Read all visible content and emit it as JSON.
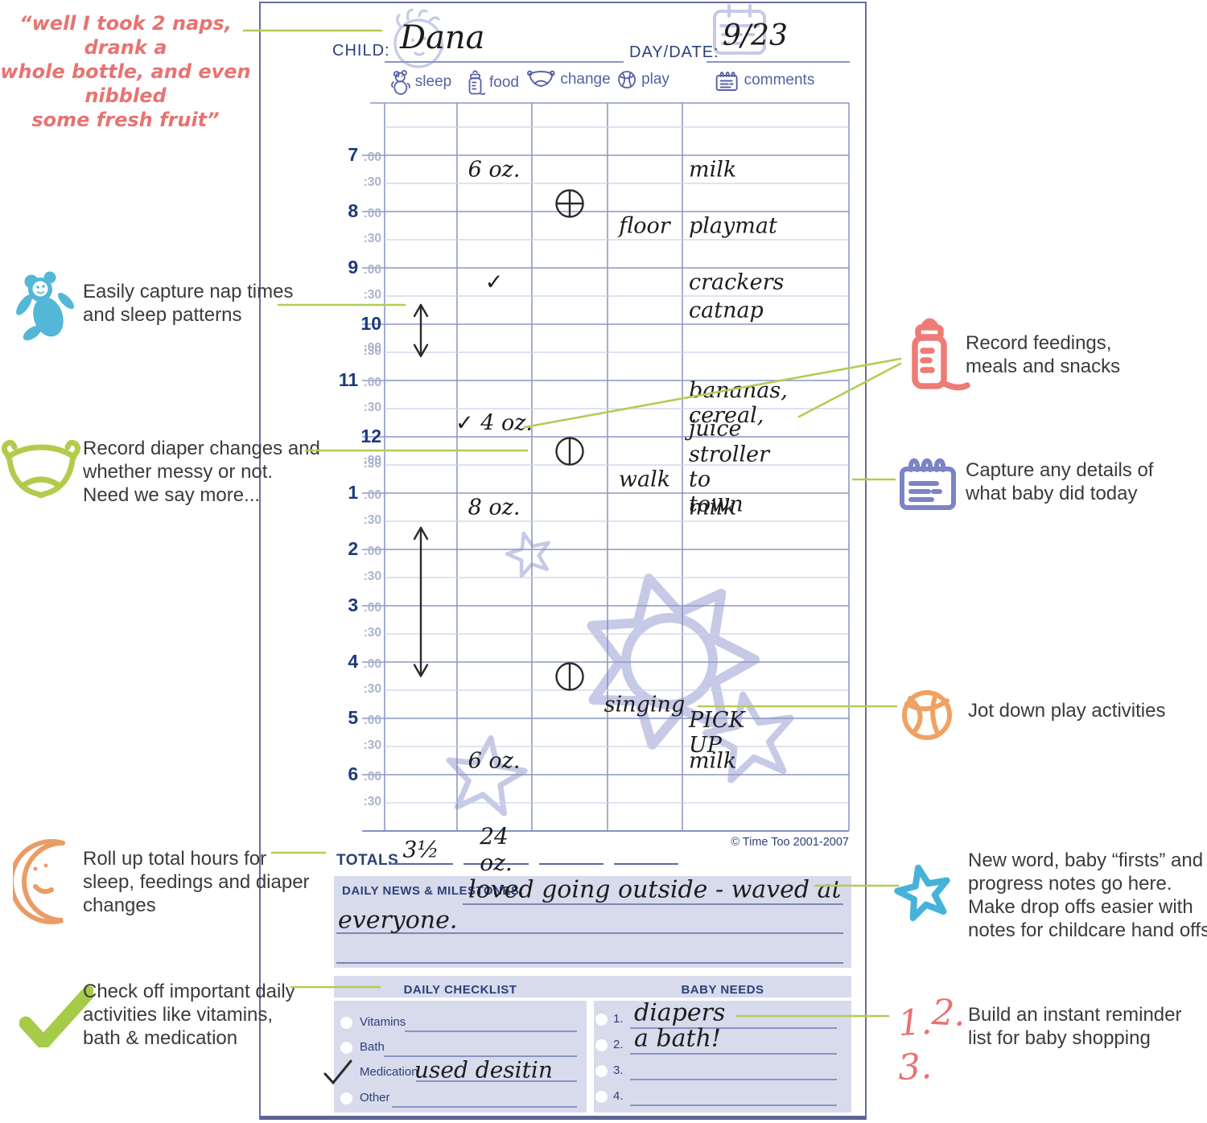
{
  "colors": {
    "accent_green": "#b4cb56",
    "navy": "#2b4178",
    "lavender_box": "#d8dbec",
    "doodle_lavender": "#c6cae6",
    "coral": "#e87372",
    "handwriting": "#1c1c1c"
  },
  "quote": {
    "lines": [
      "“well I took 2 naps, drank a",
      "whole bottle, and even nibbled",
      "some fresh fruit”"
    ]
  },
  "form": {
    "child_label": "CHILD:",
    "child_value": "Dana",
    "date_label": "DAY/DATE:",
    "date_value": "9/23",
    "columns": [
      {
        "label": "sleep",
        "icon": "bear-mini-icon"
      },
      {
        "label": "food",
        "icon": "bottle-mini-icon"
      },
      {
        "label": "change",
        "icon": "diaper-mini-icon"
      },
      {
        "label": "play",
        "icon": "ball-mini-icon"
      },
      {
        "label": "comments",
        "icon": "notepad-mini-icon"
      }
    ],
    "hours": [
      "7",
      "8",
      "9",
      "10",
      "11",
      "12",
      "1",
      "2",
      "3",
      "4",
      "5",
      "6"
    ],
    "hour_suffix": ":00",
    "half_suffix": ":30",
    "entries": [
      {
        "row": 2,
        "col": "food",
        "text": "6 oz."
      },
      {
        "row": 2,
        "col": "comments",
        "text": "milk"
      },
      {
        "row": 4,
        "col": "play",
        "text": "floor"
      },
      {
        "row": 4,
        "col": "comments",
        "text": "playmat"
      },
      {
        "row": 6,
        "col": "food",
        "text": "✓"
      },
      {
        "row": 6,
        "col": "comments",
        "text": "crackers"
      },
      {
        "row": 7,
        "col": "comments",
        "text": "catnap"
      },
      {
        "row": 10.3,
        "col": "comments",
        "text": "bananas, cereal,"
      },
      {
        "row": 11.2,
        "col": "comments",
        "text": "juice"
      },
      {
        "row": 11,
        "col": "food",
        "text": "✓ 4 oz."
      },
      {
        "row": 13,
        "col": "play",
        "text": "walk"
      },
      {
        "row": 13,
        "col": "comments",
        "text": "stroller to town"
      },
      {
        "row": 14,
        "col": "food",
        "text": "8 oz."
      },
      {
        "row": 14,
        "col": "comments",
        "text": "milk"
      },
      {
        "row": 21,
        "col": "play",
        "text": "singing"
      },
      {
        "row": 22,
        "col": "comments",
        "text": "PICK UP"
      },
      {
        "row": 23,
        "col": "food",
        "text": "6 oz."
      },
      {
        "row": 23,
        "col": "comments",
        "text": "milk"
      }
    ],
    "change_marks": [
      {
        "row": 3.2,
        "style": "cross"
      },
      {
        "row": 12,
        "style": "vertical"
      },
      {
        "row": 20,
        "style": "vertical"
      }
    ],
    "sleep_arrows": [
      {
        "from_row": 7.2,
        "to_row": 9.25
      },
      {
        "from_row": 15.1,
        "to_row": 20.6
      }
    ],
    "copyright": "© Time Too 2001-2007",
    "totals": {
      "label": "TOTALS",
      "values": [
        "3½",
        "24 oz.",
        "",
        ""
      ]
    },
    "milestones": {
      "label": "DAILY NEWS & MILESTONES:",
      "lines": [
        "loved going outside - waved at",
        "everyone."
      ]
    },
    "daily_checklist": {
      "title": "DAILY CHECKLIST",
      "items": [
        {
          "label": "Vitamins",
          "checked": false,
          "note": ""
        },
        {
          "label": "Bath",
          "checked": false,
          "note": ""
        },
        {
          "label": "Medication",
          "checked": true,
          "note": "used desitin"
        },
        {
          "label": "Other",
          "checked": false,
          "note": ""
        }
      ]
    },
    "baby_needs": {
      "title": "BABY NEEDS",
      "items": [
        {
          "num": "1.",
          "text": "diapers"
        },
        {
          "num": "2.",
          "text": "a bath!"
        },
        {
          "num": "3.",
          "text": ""
        },
        {
          "num": "4.",
          "text": ""
        }
      ]
    }
  },
  "annotations": {
    "left": [
      {
        "id": "sleep",
        "icon": "bear-icon",
        "lines": [
          "Easily capture nap times",
          "and sleep patterns"
        ]
      },
      {
        "id": "diaper",
        "icon": "diaper-icon",
        "lines": [
          "Record diaper changes and",
          "whether messy or not.",
          "Need we say more..."
        ]
      },
      {
        "id": "totals",
        "icon": "moon-icon",
        "lines": [
          "Roll up total hours for",
          "sleep, feedings and diaper",
          "changes"
        ]
      },
      {
        "id": "checklist",
        "icon": "checkmark-icon",
        "lines": [
          "Check off important daily",
          "activities like vitamins,",
          "bath & medication"
        ]
      }
    ],
    "right": [
      {
        "id": "feedings",
        "icon": "bottle-icon",
        "lines": [
          "Record feedings,",
          "meals and snacks"
        ]
      },
      {
        "id": "comments",
        "icon": "notepad-icon",
        "lines": [
          "Capture any details of",
          "what baby did today"
        ]
      },
      {
        "id": "play",
        "icon": "basketball-icon",
        "lines": [
          "Jot down play activities"
        ]
      },
      {
        "id": "milestones",
        "icon": "star-icon",
        "lines": [
          "New word, baby “firsts” and",
          "progress notes go here.",
          "Make drop offs easier with",
          "notes for childcare hand offs."
        ]
      },
      {
        "id": "shopping",
        "icon": "numbers-icon",
        "numbers": "1.2.3.",
        "lines": [
          "Build an instant reminder",
          "list for baby shopping"
        ]
      }
    ]
  }
}
